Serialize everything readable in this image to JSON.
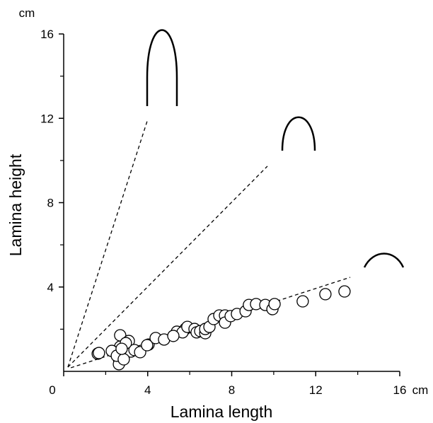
{
  "chart_data": {
    "type": "scatter",
    "xlabel": "Lamina length",
    "ylabel": "Lamina height",
    "x_unit": "cm",
    "y_unit": "cm",
    "xlim": [
      0,
      16
    ],
    "ylim": [
      0,
      16
    ],
    "xticks": [
      0,
      4,
      8,
      12,
      16
    ],
    "yticks": [
      4,
      8,
      12,
      16
    ],
    "xminorticks": [
      2,
      6,
      10,
      14
    ],
    "yminorticks": [
      2,
      6,
      10,
      14
    ],
    "series": [
      {
        "color": "#000000",
        "x": [
          1.62,
          1.68,
          2.69,
          2.69,
          2.63,
          2.63,
          2.8,
          2.96,
          3.1,
          3.2,
          2.43,
          2.29,
          2.53,
          2.86,
          3.37,
          3.64,
          4.04,
          4.38,
          4.78,
          5.39,
          5.79,
          5.66,
          5.89,
          6.23,
          6.33,
          6.5,
          6.74,
          6.74,
          6.94,
          7.14,
          7.41,
          7.68,
          7.68,
          7.95,
          8.25,
          8.66,
          8.82,
          9.16,
          9.6,
          9.94,
          10.04,
          11.38,
          12.46,
          13.37,
          2.96,
          3.97,
          2.76,
          5.22
        ],
        "values": [
          0.84,
          0.87,
          1.71,
          1.17,
          0.57,
          0.34,
          0.84,
          1.01,
          1.44,
          0.94,
          0.91,
          0.97,
          0.74,
          0.57,
          1.01,
          0.91,
          1.27,
          1.58,
          1.51,
          1.88,
          2.01,
          1.85,
          2.11,
          2.01,
          1.85,
          1.91,
          1.81,
          2.01,
          2.11,
          2.48,
          2.65,
          2.65,
          2.31,
          2.62,
          2.72,
          2.85,
          3.15,
          3.19,
          3.15,
          2.95,
          3.19,
          3.32,
          3.66,
          3.79,
          1.34,
          1.24,
          1.07,
          1.68
        ]
      }
    ],
    "lines": [
      {
        "x": [
          0.2,
          3.97
        ],
        "values": [
          0.2,
          11.85
        ]
      },
      {
        "x": [
          0.2,
          9.7
        ],
        "values": [
          0.2,
          9.73
        ]
      },
      {
        "x": [
          0.34,
          13.64
        ],
        "values": [
          0.17,
          4.46
        ]
      }
    ]
  }
}
